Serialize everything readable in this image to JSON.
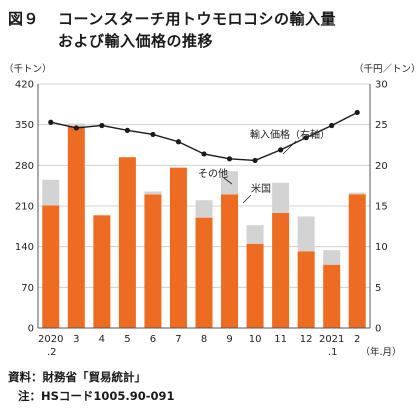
{
  "title": {
    "figure_label": "図９",
    "line1": "コーンスターチ用トウモロコシの輸入量",
    "line2": "および輸入価格の推移"
  },
  "notes": {
    "source": "資料：財務省「貿易統計」",
    "note": "注：HSコード1005.90-091"
  },
  "chart_data": {
    "type": "bar",
    "left_unit": "（千トン）",
    "right_unit": "（千円／トン）",
    "x_unit": "（年.月）",
    "categories": [
      {
        "line1": "2020",
        "line2": ".2"
      },
      {
        "line1": "3",
        "line2": ""
      },
      {
        "line1": "4",
        "line2": ""
      },
      {
        "line1": "5",
        "line2": ""
      },
      {
        "line1": "6",
        "line2": ""
      },
      {
        "line1": "7",
        "line2": ""
      },
      {
        "line1": "8",
        "line2": ""
      },
      {
        "line1": "9",
        "line2": ""
      },
      {
        "line1": "10",
        "line2": ""
      },
      {
        "line1": "11",
        "line2": ""
      },
      {
        "line1": "12",
        "line2": ""
      },
      {
        "line1": "2021",
        "line2": ".1"
      },
      {
        "line1": "2",
        "line2": ""
      }
    ],
    "y_left": {
      "min": 0,
      "max": 420,
      "ticks": [
        0,
        70,
        140,
        210,
        280,
        350,
        420
      ]
    },
    "y_right": {
      "min": 0,
      "max": 30,
      "ticks": [
        0,
        5,
        10,
        15,
        20,
        25,
        30
      ]
    },
    "series": [
      {
        "name": "米国",
        "kind": "bar-stacked",
        "color": "#ee6c22",
        "values": [
          211,
          347,
          194,
          294,
          230,
          276,
          190,
          230,
          145,
          198,
          132,
          109,
          230
        ]
      },
      {
        "name": "その他",
        "kind": "bar-stacked",
        "color": "#d3d3d3",
        "values": [
          44,
          5,
          0,
          0,
          5,
          0,
          30,
          40,
          32,
          52,
          60,
          25,
          3
        ]
      },
      {
        "name": "輸入価格（右軸）",
        "kind": "line",
        "axis": "right",
        "color": "#1a1a1a",
        "values": [
          25.3,
          24.6,
          24.9,
          24.3,
          23.8,
          22.9,
          21.4,
          20.8,
          20.6,
          21.9,
          23.4,
          24.9,
          26.5
        ]
      }
    ],
    "grid": "horizontal"
  }
}
